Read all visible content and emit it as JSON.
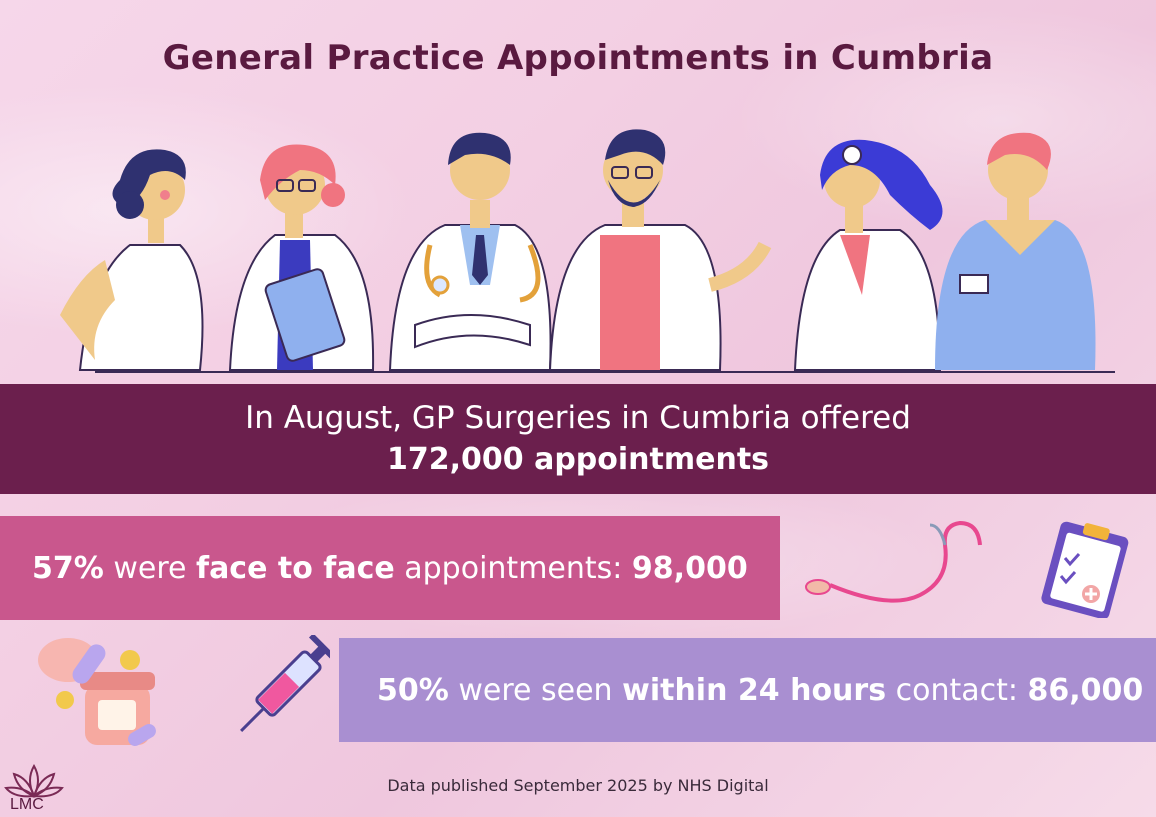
{
  "title": "General Practice Appointments in Cumbria",
  "main_banner": {
    "line1": "In August, GP Surgeries in Cumbria offered",
    "line2": "172,000 appointments"
  },
  "face_to_face": {
    "percent": "57%",
    "were": " were ",
    "highlight": "face to face",
    "rest": " appointments: ",
    "count": "98,000"
  },
  "within_24": {
    "percent": "50%",
    "were": " were seen ",
    "highlight": "within 24 hours",
    "rest": " contact: ",
    "count": "86,000"
  },
  "footer": "Data published September 2025 by NHS Digital",
  "logo_text": "LMC",
  "colors": {
    "title": "#5a1a40",
    "main_banner": "#6b1f4d",
    "f2f_banner": "#c9578d",
    "within24_banner": "#a98fd1"
  },
  "icons": [
    "doctors-illustration",
    "stethoscope-icon",
    "clipboard-icon",
    "pills-bottle-icon",
    "syringe-icon",
    "lotus-logo-icon"
  ]
}
